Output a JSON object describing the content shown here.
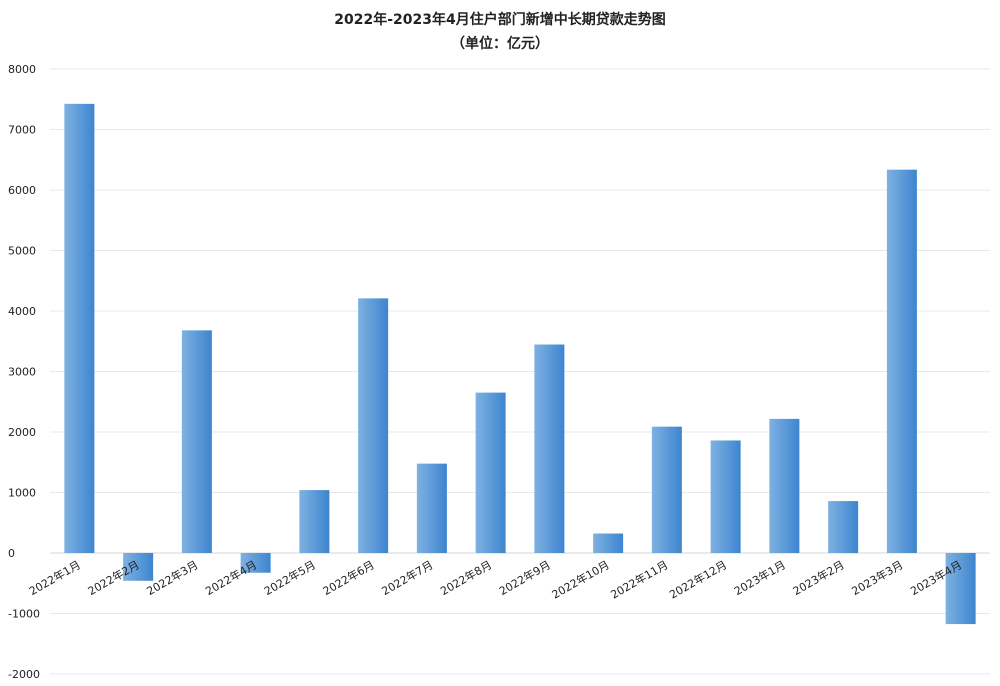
{
  "chart_data": {
    "type": "bar",
    "title": "2022年-2023年4月住户部门新增中长期贷款走势图",
    "subtitle": "（单位：亿元）",
    "categories": [
      "2022年1月",
      "2022年2月",
      "2022年3月",
      "2022年4月",
      "2022年5月",
      "2022年6月",
      "2022年7月",
      "2022年8月",
      "2022年9月",
      "2022年10月",
      "2022年11月",
      "2022年12月",
      "2023年1月",
      "2023年2月",
      "2023年3月",
      "2023年4月"
    ],
    "values": [
      7424,
      -459,
      3680,
      -326,
      1040,
      4209,
      1477,
      2651,
      3446,
      322,
      2088,
      1860,
      2217,
      858,
      6336,
      -1175
    ],
    "ylim": [
      -2000,
      8000
    ],
    "yticks": [
      8000,
      7000,
      6000,
      5000,
      4000,
      3000,
      2000,
      1000,
      0,
      -1000,
      -2000
    ],
    "grid": true,
    "bar_color_light": "#7fb1e2",
    "bar_color_dark": "#3d85cf",
    "grid_color": "#e8e8e8"
  }
}
